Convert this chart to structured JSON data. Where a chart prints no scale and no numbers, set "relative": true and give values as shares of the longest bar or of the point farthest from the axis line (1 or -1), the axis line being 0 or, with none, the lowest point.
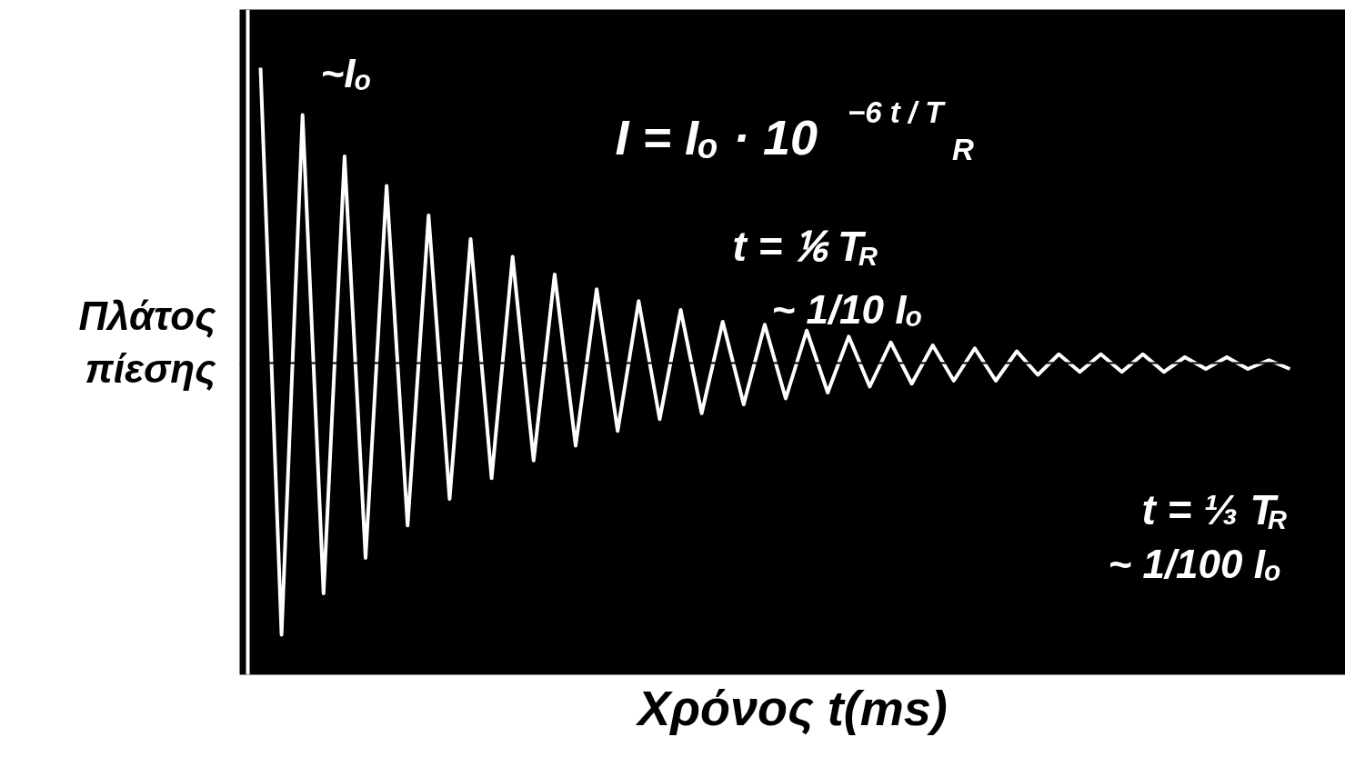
{
  "chart_data": {
    "type": "line",
    "relative": true,
    "categories": [
      null,
      null,
      null,
      null,
      null,
      null,
      null,
      null,
      null,
      null,
      null,
      null,
      null,
      null,
      null,
      null,
      null,
      null,
      null,
      null,
      null,
      null,
      null,
      null,
      null,
      null,
      null,
      null,
      null,
      null,
      null,
      null,
      null,
      null,
      null,
      null,
      null,
      null,
      null,
      null,
      null,
      null,
      null,
      null,
      null,
      null,
      null,
      null,
      null,
      null
    ],
    "series": [
      {
        "color": "#ffffff",
        "values": [
          1,
          -0.92,
          0.84,
          -0.78,
          0.7,
          -0.66,
          0.6,
          -0.55,
          0.5,
          -0.46,
          0.42,
          -0.39,
          0.36,
          -0.33,
          0.3,
          -0.28,
          0.25,
          -0.23,
          0.21,
          -0.19,
          0.18,
          -0.17,
          0.14,
          -0.14,
          0.13,
          -0.12,
          0.11,
          -0.1,
          0.09,
          -0.08,
          0.07,
          -0.07,
          0.06,
          -0.06,
          0.05,
          -0.06,
          0.04,
          -0.04,
          0.03,
          -0.03,
          0.03,
          -0.03,
          0.03,
          -0.03,
          0.02,
          -0.02,
          0.02,
          -0.02,
          0.01,
          -0.02
        ]
      }
    ],
    "xlabel": "Χρόνος t(ms)",
    "ylabel": "Πλάτος πίεσης",
    "annotations": [
      "~Iₒ",
      "I = Iₒ · 10$^{−6 t / T}$$_{R}$",
      "t = ⅙ T$_{R}$",
      "~ 1/10 Iₒ",
      "t = ⅓ T$_{R}$",
      "~ 1/100 Iₒ"
    ]
  }
}
